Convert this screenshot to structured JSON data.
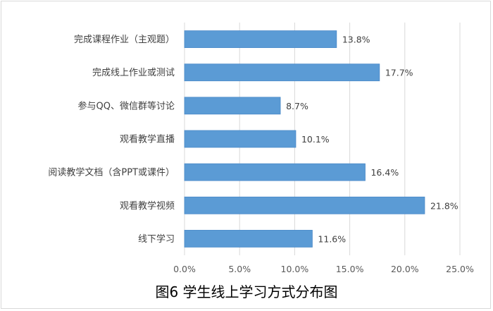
{
  "colors": {
    "bar": "#5b9bd5",
    "bar_edge": "#4a89c8",
    "grid": "#d9d9d9",
    "text": "#404040"
  },
  "caption": "图6  学生线上学习方式分布图",
  "chart_data": {
    "type": "bar",
    "orientation": "horizontal",
    "categories": [
      "完成课程作业（主观题）",
      "完成线上作业或测试",
      "参与QQ、微信群等讨论",
      "观看教学直播",
      "阅读教学文档（含PPT或课件）",
      "观看教学视频",
      "线下学习"
    ],
    "values": [
      13.8,
      17.7,
      8.7,
      10.1,
      16.4,
      21.8,
      11.6
    ],
    "data_labels": [
      "13.8%",
      "17.7%",
      "8.7%",
      "10.1%",
      "16.4%",
      "21.8%",
      "11.6%"
    ],
    "x_ticks": [
      "0.0%",
      "5.0%",
      "10.0%",
      "15.0%",
      "20.0%",
      "25.0%"
    ],
    "xlim": [
      0,
      25
    ],
    "title": "",
    "xlabel": "",
    "ylabel": "",
    "grid": "vertical",
    "legend": "none"
  }
}
